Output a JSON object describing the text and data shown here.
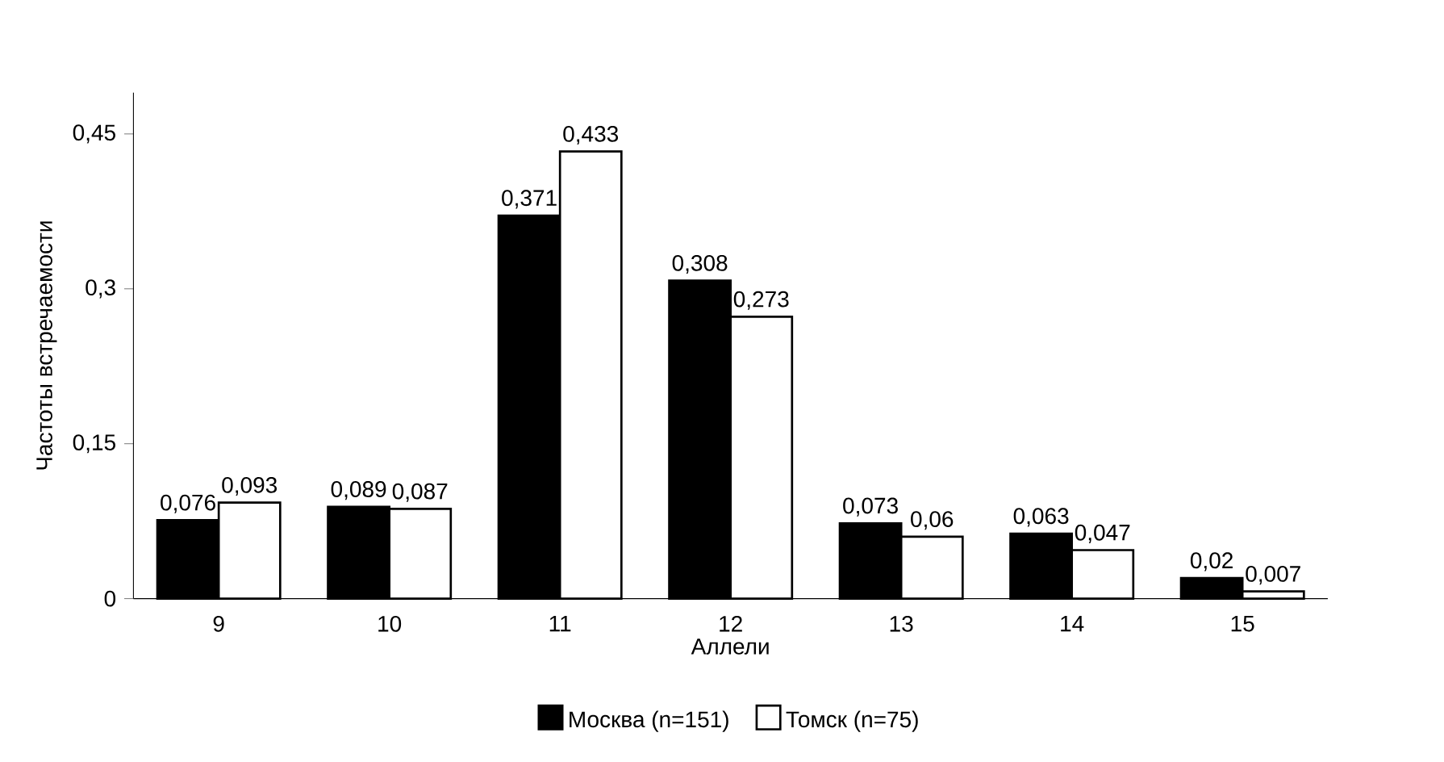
{
  "chart_data": {
    "type": "bar",
    "xlabel": "Аллели",
    "ylabel": "Частоты встречаемости",
    "categories": [
      "9",
      "10",
      "11",
      "12",
      "13",
      "14",
      "15"
    ],
    "series": [
      {
        "name": "Москва (n=151)",
        "color": "#000000",
        "values": [
          0.076,
          0.089,
          0.371,
          0.308,
          0.073,
          0.063,
          0.02
        ],
        "value_labels": [
          "0,076",
          "0,089",
          "0,371",
          "0,308",
          "0,073",
          "0,063",
          "0,02"
        ]
      },
      {
        "name": "Томск (n=75)",
        "color": "#ffffff",
        "values": [
          0.093,
          0.087,
          0.433,
          0.273,
          0.06,
          0.047,
          0.007
        ],
        "value_labels": [
          "0,093",
          "0,087",
          "0,433",
          "0,273",
          "0,06",
          "0,047",
          "0,007"
        ]
      }
    ],
    "ylim": [
      0,
      0.49
    ],
    "yticks": [
      {
        "value": 0,
        "label": "0"
      },
      {
        "value": 0.15,
        "label": "0,15"
      },
      {
        "value": 0.3,
        "label": "0,3"
      },
      {
        "value": 0.45,
        "label": "0,45"
      }
    ],
    "legend": "bottom"
  }
}
